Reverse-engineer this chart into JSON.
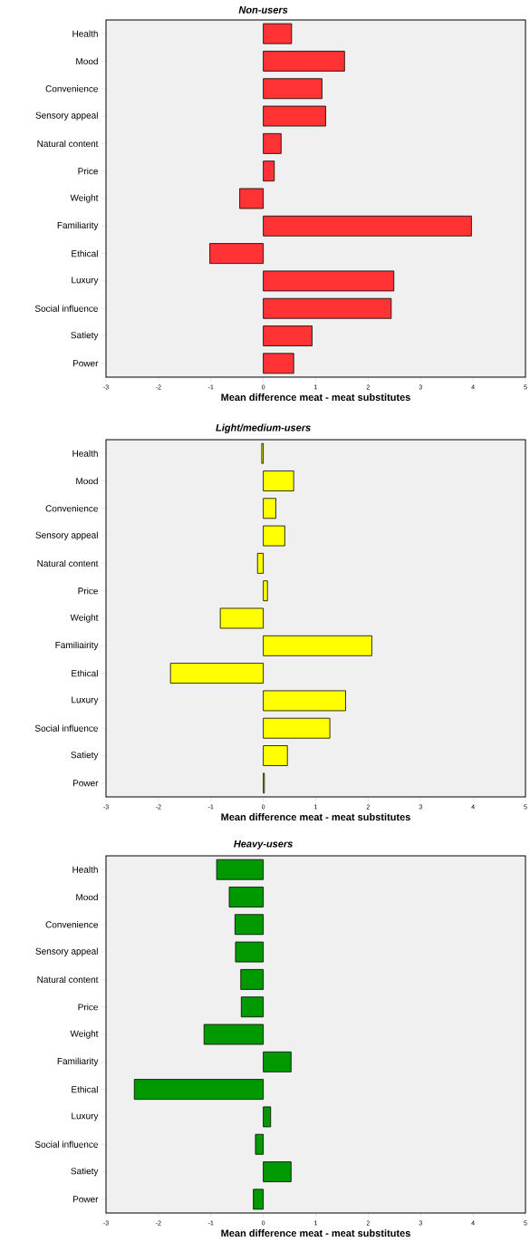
{
  "chart_data": [
    {
      "type": "bar",
      "orientation": "horizontal",
      "title": "Non-users",
      "xlabel": "Mean difference meat - meat substitutes",
      "categories": [
        "Health",
        "Mood",
        "Convenience",
        "Sensory appeal",
        "Natural content",
        "Price",
        "Weight",
        "Familiarity",
        "Ethical",
        "Luxury",
        "Social influence",
        "Satiety",
        "Power"
      ],
      "values": [
        0.54,
        1.55,
        1.12,
        1.19,
        0.34,
        0.21,
        -0.45,
        3.97,
        -1.02,
        2.49,
        2.44,
        0.93,
        0.58
      ],
      "color": "#ff3333",
      "xlim": [
        -3,
        5
      ],
      "xticks": [
        -3,
        -2,
        -1,
        0,
        1,
        2,
        3,
        4,
        5
      ]
    },
    {
      "type": "bar",
      "orientation": "horizontal",
      "title": "Light/medium-users",
      "xlabel": "Mean difference meat - meat substitutes",
      "categories": [
        "Health",
        "Mood",
        "Convenience",
        "Sensory appeal",
        "Natural content",
        "Price",
        "Weight",
        "Familiairity",
        "Ethical",
        "Luxury",
        "Social influence",
        "Satiety",
        "Power"
      ],
      "values": [
        -0.03,
        0.58,
        0.24,
        0.41,
        -0.11,
        0.08,
        -0.82,
        2.07,
        -1.77,
        1.57,
        1.27,
        0.46,
        0.02
      ],
      "color": "#ffff00",
      "xlim": [
        -3,
        5
      ],
      "xticks": [
        -3,
        -2,
        -1,
        0,
        1,
        2,
        3,
        4,
        5
      ]
    },
    {
      "type": "bar",
      "orientation": "horizontal",
      "title": "Heavy-users",
      "xlabel": "Mean difference meat - meat substitutes",
      "categories": [
        "Health",
        "Mood",
        "Convenience",
        "Sensory appeal",
        "Natural content",
        "Price",
        "Weight",
        "Familiarity",
        "Ethical",
        "Luxury",
        "Social influence",
        "Satiety",
        "Power"
      ],
      "values": [
        -0.89,
        -0.65,
        -0.54,
        -0.53,
        -0.43,
        -0.42,
        -1.13,
        0.53,
        -2.46,
        0.14,
        -0.15,
        0.53,
        -0.19
      ],
      "color": "#009900",
      "xlim": [
        -3,
        5
      ],
      "xticks": [
        -3,
        -2,
        -1,
        0,
        1,
        2,
        3,
        4,
        5
      ]
    }
  ]
}
